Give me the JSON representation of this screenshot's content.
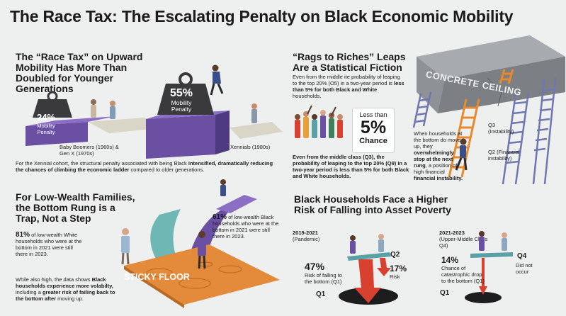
{
  "title": "The Race Tax: The Escalating Penalty on Black Economic Mobility",
  "section1": {
    "heading": "The “Race Tax” on Upward Mobility Has More Than Doubled for Younger Generations",
    "weight_left_pct": "24%",
    "weight_left_label": "Mobility Penalty",
    "weight_right_pct": "55%",
    "weight_right_label": "Mobility Penalty",
    "gen_left": "Baby Boomers (1960s) & Gen X (1970s)",
    "gen_right": "Xennials (1980s)",
    "body_pre": "For the Xennial cohort, the structural penalty associated with being Black ",
    "body_bold": "intensified, dramatically reducing the chances of climbing the economic ladder",
    "body_post": " compared to older generations."
  },
  "section2": {
    "heading": "“Rags to Riches” Leaps Are a Statistical Fiction",
    "body_pre": "Even from the middle ite probability of leaping to the top 20% (O5) in a two-year period is ",
    "body_bold": "less than 5% for both Black and White",
    "body_post": " households.",
    "badge_top": "Less than",
    "badge_pct": "5%",
    "badge_bottom": "Chance",
    "lower_text": "Even from the middle class (Q3), the probability of leaping to the top 20% (Q9) in a two-year period is less than 5% for both Black and White households.",
    "ceiling_label": "CONCRETE CEILING",
    "q3_label": "Q3 (Instability)",
    "q2_label": "Q2 (Financial instability)",
    "right_pre": "When households at the bottom do move up, they ",
    "right_bold": "overwhelmingly stop at the next rung",
    "right_mid": ", a position of high financial ",
    "right_bold2": "financial instability."
  },
  "section3": {
    "heading": "For Low-Wealth Families, the Bottom Rung is a Trap, Not a Step",
    "stat_left_pct": "81%",
    "stat_left_text": "of low-wealth White households who were at the bottom in 2021 were still there in 2023.",
    "stat_right_pct": "61%",
    "stat_right_text": "of low-wealth Black households who were at the bottom in 2021 were still there in 2023.",
    "floor_label": "STICKY FLOOR",
    "body_pre": "While also high, the data shows ",
    "body_bold": "Black households experience more volabilty,",
    "body_mid": " including a ",
    "body_bold2": "greater risk of failing back to the bottom after",
    "body_post": " moving up."
  },
  "section4": {
    "heading": "Black Households Face a Higher Risk of Falling into Asset Poverty",
    "left_period": "2019-2021",
    "left_sub": "(Pandemic)",
    "left_q_high": "Q2",
    "left_pct_a": "47%",
    "left_text_a": "Risk of falling to the bottom (Q1)",
    "left_pct_b": "17%",
    "left_text_b": "Risk",
    "left_q_low": "Q1",
    "right_period": "2021-2023",
    "right_sub": "(Upper-Middle Class Q4)",
    "right_q_high": "Q4",
    "right_pct": "14%",
    "right_text": "Chance of catastrophic drop to the bottom (Q1)",
    "right_side_text": "Did not occur",
    "right_q_low": "Q1"
  },
  "colors": {
    "purple": "#6a4fa3",
    "red": "#d8412f",
    "orange": "#e7892d",
    "teal": "#5aa0a6",
    "concrete": "#8e9296",
    "floor_orange": "#e38b3a"
  }
}
